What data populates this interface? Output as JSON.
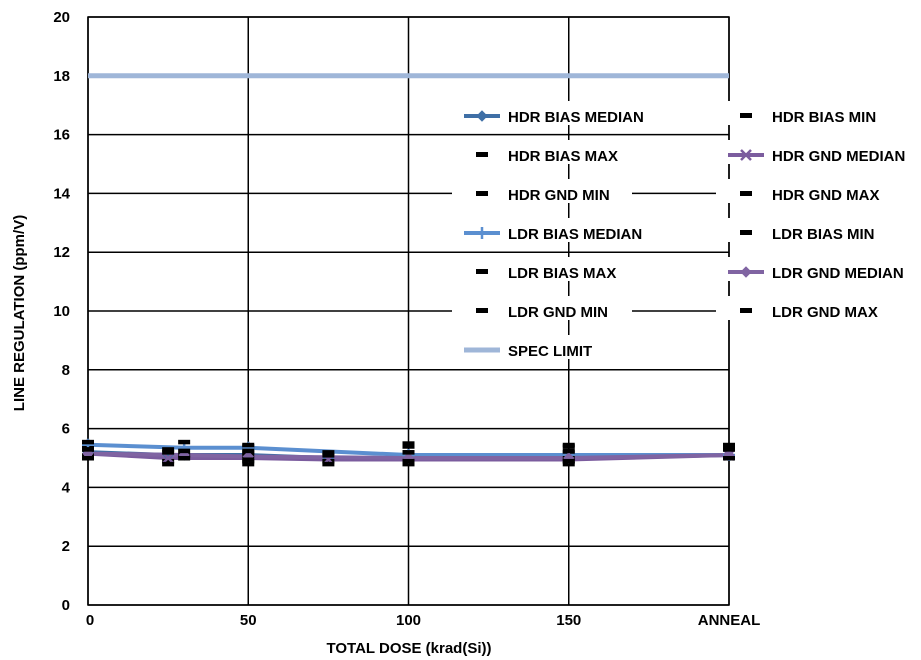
{
  "chart_data": {
    "type": "line",
    "xlabel": "TOTAL DOSE (krad(Si))",
    "ylabel": "LINE REGULATION (ppm/V)",
    "x_tick_labels": [
      "0",
      "50",
      "100",
      "150",
      "ANNEAL"
    ],
    "y_tick_labels": [
      "0",
      "2",
      "4",
      "6",
      "8",
      "10",
      "12",
      "14",
      "16",
      "18",
      "20"
    ],
    "xlim": [
      0,
      200
    ],
    "ylim": [
      0,
      20
    ],
    "grid": true,
    "legend_position": "right, inside plot area",
    "spec_limit": 18,
    "series": [
      {
        "name": "HDR BIAS MEDIAN",
        "color": "#3f6fa6",
        "marker": "diamond",
        "x": [
          0,
          25,
          50,
          75,
          100,
          150,
          200
        ],
        "y": [
          5.2,
          5.1,
          5.1,
          5.0,
          5.0,
          5.0,
          5.1
        ]
      },
      {
        "name": "HDR BIAS MIN",
        "color": "#000000",
        "marker": "dash",
        "x": [
          0,
          25,
          50,
          75,
          100,
          150,
          200
        ],
        "y": [
          5.1,
          4.9,
          4.9,
          4.9,
          4.9,
          4.9,
          5.0
        ]
      },
      {
        "name": "HDR BIAS MAX",
        "color": "#000000",
        "marker": "dash",
        "x": [
          0,
          25,
          50,
          75,
          100,
          150,
          200
        ],
        "y": [
          5.4,
          5.3,
          5.4,
          5.2,
          5.4,
          5.4,
          5.4
        ]
      },
      {
        "name": "HDR GND MEDIAN",
        "color": "#7b5c9e",
        "marker": "x",
        "x": [
          0,
          25,
          50,
          75,
          100,
          150,
          200
        ],
        "y": [
          5.15,
          5.0,
          5.0,
          4.95,
          4.95,
          4.95,
          5.1
        ]
      },
      {
        "name": "HDR GND MIN",
        "color": "#000000",
        "marker": "dash",
        "x": [
          0,
          25,
          50,
          75,
          100,
          150,
          200
        ],
        "y": [
          5.0,
          4.8,
          4.8,
          4.8,
          4.8,
          4.8,
          5.0
        ]
      },
      {
        "name": "HDR GND MAX",
        "color": "#000000",
        "marker": "dash",
        "x": [
          0,
          25,
          50,
          75,
          100,
          150,
          200
        ],
        "y": [
          5.3,
          5.2,
          5.2,
          5.1,
          5.2,
          5.2,
          5.3
        ]
      },
      {
        "name": "LDR BIAS MEDIAN",
        "color": "#5b8fd0",
        "marker": "plus",
        "x": [
          0,
          30,
          50,
          100,
          150,
          200
        ],
        "y": [
          5.45,
          5.35,
          5.35,
          5.1,
          5.1,
          5.1
        ]
      },
      {
        "name": "LDR BIAS MIN",
        "color": "#000000",
        "marker": "dash",
        "x": [
          0,
          30,
          50,
          100,
          150,
          200
        ],
        "y": [
          5.3,
          5.1,
          5.1,
          4.9,
          5.0,
          5.0
        ]
      },
      {
        "name": "LDR BIAS MAX",
        "color": "#000000",
        "marker": "dash",
        "x": [
          0,
          30,
          50,
          100,
          150,
          200
        ],
        "y": [
          5.55,
          5.55,
          5.45,
          5.5,
          5.45,
          5.45
        ]
      },
      {
        "name": "LDR GND MEDIAN",
        "color": "#8064a2",
        "marker": "diamond",
        "x": [
          0,
          30,
          50,
          100,
          150,
          200
        ],
        "y": [
          5.15,
          5.1,
          5.05,
          5.0,
          5.0,
          5.1
        ]
      },
      {
        "name": "LDR GND MIN",
        "color": "#000000",
        "marker": "dash",
        "x": [
          0,
          30,
          50,
          100,
          150,
          200
        ],
        "y": [
          5.0,
          5.0,
          4.95,
          4.9,
          4.9,
          5.0
        ]
      },
      {
        "name": "LDR GND MAX",
        "color": "#000000",
        "marker": "dash",
        "x": [
          0,
          30,
          50,
          100,
          150,
          200
        ],
        "y": [
          5.3,
          5.25,
          5.25,
          5.2,
          5.25,
          5.3
        ]
      },
      {
        "name": "SPEC LIMIT",
        "color": "#9fb6d8",
        "marker": "none",
        "x": [
          0,
          200
        ],
        "y": [
          18,
          18
        ]
      }
    ]
  }
}
